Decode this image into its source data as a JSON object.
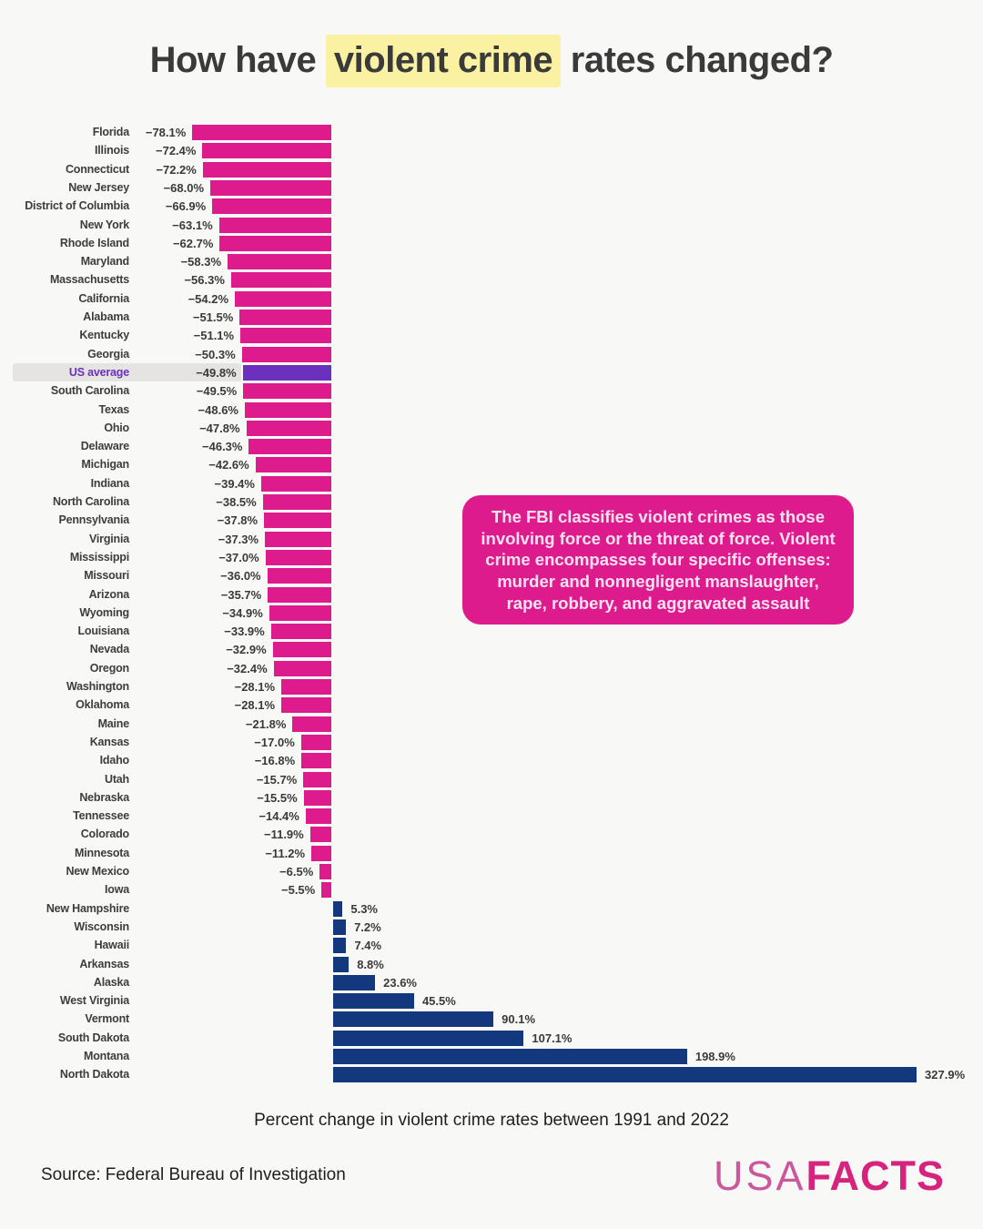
{
  "title": {
    "prefix": "How have ",
    "highlight": "violent crime",
    "suffix": " rates changed?"
  },
  "note": "The FBI classifies violent crimes as those involving force or the threat of force. Violent crime encompasses four specific offenses: murder and nonnegligent manslaughter, rape, robbery, and aggravated assault",
  "caption": "Percent change in violent crime rates between 1991 and 2022",
  "source": "Source: Federal Bureau of Investigation",
  "logo": {
    "part1": "USA",
    "part2": "FACTS"
  },
  "colors": {
    "background": "#F8F8F6",
    "negative_bar": "#DE1B8D",
    "positive_bar": "#14387E",
    "average_bar": "#6A30BE",
    "average_label": "#6A30BE",
    "title_highlight": "#FAF1A3",
    "note_background": "#DE1B8D",
    "note_text": "#FCE2F2",
    "row_highlight": "#E5E4E2",
    "logo_usa": "#C9589D",
    "logo_facts": "#D6247E"
  },
  "chart_data": {
    "type": "bar",
    "orientation": "horizontal",
    "title": "How have violent crime rates changed?",
    "xlabel": "Percent change in violent crime rates between 1991 and 2022",
    "unit": "%",
    "value_range": [
      -78.1,
      327.9
    ],
    "grid": false,
    "legend": false,
    "entries": [
      {
        "name": "Florida",
        "value": -78.1,
        "display": "−78.1%"
      },
      {
        "name": "Illinois",
        "value": -72.4,
        "display": "−72.4%"
      },
      {
        "name": "Connecticut",
        "value": -72.2,
        "display": "−72.2%"
      },
      {
        "name": "New Jersey",
        "value": -68.0,
        "display": "−68.0%"
      },
      {
        "name": "District of Columbia",
        "value": -66.9,
        "display": "−66.9%"
      },
      {
        "name": "New York",
        "value": -63.1,
        "display": "−63.1%"
      },
      {
        "name": "Rhode Island",
        "value": -62.7,
        "display": "−62.7%"
      },
      {
        "name": "Maryland",
        "value": -58.3,
        "display": "−58.3%"
      },
      {
        "name": "Massachusetts",
        "value": -56.3,
        "display": "−56.3%"
      },
      {
        "name": "California",
        "value": -54.2,
        "display": "−54.2%"
      },
      {
        "name": "Alabama",
        "value": -51.5,
        "display": "−51.5%"
      },
      {
        "name": "Kentucky",
        "value": -51.1,
        "display": "−51.1%"
      },
      {
        "name": "Georgia",
        "value": -50.3,
        "display": "−50.3%"
      },
      {
        "name": "US average",
        "value": -49.8,
        "display": "−49.8%",
        "emphasis": true
      },
      {
        "name": "South Carolina",
        "value": -49.5,
        "display": "−49.5%"
      },
      {
        "name": "Texas",
        "value": -48.6,
        "display": "−48.6%"
      },
      {
        "name": "Ohio",
        "value": -47.8,
        "display": "−47.8%"
      },
      {
        "name": "Delaware",
        "value": -46.3,
        "display": "−46.3%"
      },
      {
        "name": "Michigan",
        "value": -42.6,
        "display": "−42.6%"
      },
      {
        "name": "Indiana",
        "value": -39.4,
        "display": "−39.4%"
      },
      {
        "name": "North Carolina",
        "value": -38.5,
        "display": "−38.5%"
      },
      {
        "name": "Pennsylvania",
        "value": -37.8,
        "display": "−37.8%"
      },
      {
        "name": "Virginia",
        "value": -37.3,
        "display": "−37.3%"
      },
      {
        "name": "Mississippi",
        "value": -37.0,
        "display": "−37.0%"
      },
      {
        "name": "Missouri",
        "value": -36.0,
        "display": "−36.0%"
      },
      {
        "name": "Arizona",
        "value": -35.7,
        "display": "−35.7%"
      },
      {
        "name": "Wyoming",
        "value": -34.9,
        "display": "−34.9%"
      },
      {
        "name": "Louisiana",
        "value": -33.9,
        "display": "−33.9%"
      },
      {
        "name": "Nevada",
        "value": -32.9,
        "display": "−32.9%"
      },
      {
        "name": "Oregon",
        "value": -32.4,
        "display": "−32.4%"
      },
      {
        "name": "Washington",
        "value": -28.1,
        "display": "−28.1%"
      },
      {
        "name": "Oklahoma",
        "value": -28.1,
        "display": "−28.1%"
      },
      {
        "name": "Maine",
        "value": -21.8,
        "display": "−21.8%"
      },
      {
        "name": "Kansas",
        "value": -17.0,
        "display": "−17.0%"
      },
      {
        "name": "Idaho",
        "value": -16.8,
        "display": "−16.8%"
      },
      {
        "name": "Utah",
        "value": -15.7,
        "display": "−15.7%"
      },
      {
        "name": "Nebraska",
        "value": -15.5,
        "display": "−15.5%"
      },
      {
        "name": "Tennessee",
        "value": -14.4,
        "display": "−14.4%"
      },
      {
        "name": "Colorado",
        "value": -11.9,
        "display": "−11.9%"
      },
      {
        "name": "Minnesota",
        "value": -11.2,
        "display": "−11.2%"
      },
      {
        "name": "New Mexico",
        "value": -6.5,
        "display": "−6.5%"
      },
      {
        "name": "Iowa",
        "value": -5.5,
        "display": "−5.5%"
      },
      {
        "name": "New Hampshire",
        "value": 5.3,
        "display": "5.3%"
      },
      {
        "name": "Wisconsin",
        "value": 7.2,
        "display": "7.2%"
      },
      {
        "name": "Hawaii",
        "value": 7.4,
        "display": "7.4%"
      },
      {
        "name": "Arkansas",
        "value": 8.8,
        "display": "8.8%"
      },
      {
        "name": "Alaska",
        "value": 23.6,
        "display": "23.6%"
      },
      {
        "name": "West Virginia",
        "value": 45.5,
        "display": "45.5%"
      },
      {
        "name": "Vermont",
        "value": 90.1,
        "display": "90.1%"
      },
      {
        "name": "South Dakota",
        "value": 107.1,
        "display": "107.1%"
      },
      {
        "name": "Montana",
        "value": 198.9,
        "display": "198.9%"
      },
      {
        "name": "North Dakota",
        "value": 327.9,
        "display": "327.9%"
      }
    ]
  }
}
